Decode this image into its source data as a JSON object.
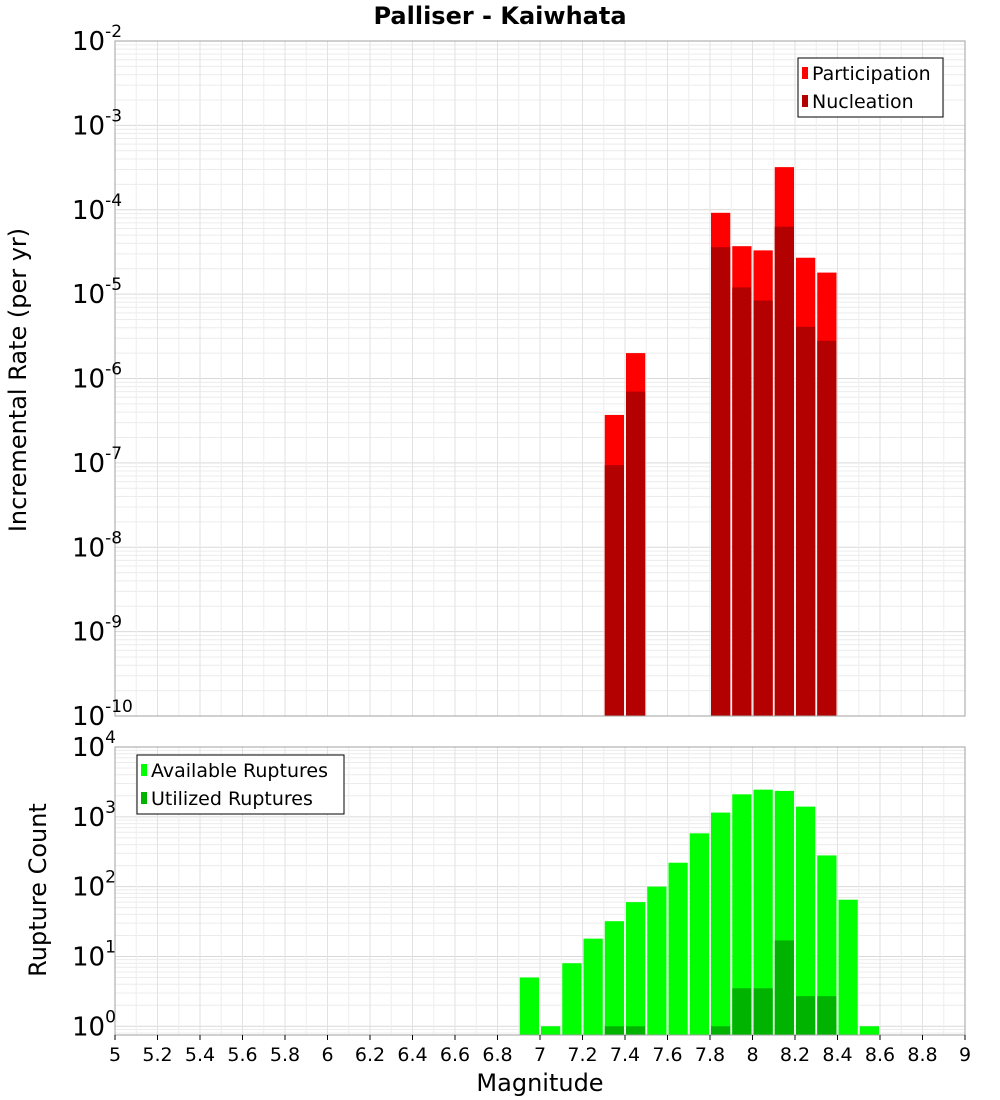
{
  "title": "Palliser - Kaiwhata",
  "chart_data": [
    {
      "type": "bar",
      "name": "top-panel",
      "title": "Palliser - Kaiwhata",
      "xlabel": "",
      "ylabel": "Incremental Rate (per yr)",
      "yscale": "log",
      "ylim": [
        1e-10,
        0.01
      ],
      "xlim": [
        5,
        9
      ],
      "bar_width": 0.1,
      "grid": true,
      "legend_position": "top-right",
      "y_ticks": [
        {
          "base": "10",
          "exp": "-10",
          "value": 1e-10
        },
        {
          "base": "10",
          "exp": "-9",
          "value": 1e-09
        },
        {
          "base": "10",
          "exp": "-8",
          "value": 1e-08
        },
        {
          "base": "10",
          "exp": "-7",
          "value": 1e-07
        },
        {
          "base": "10",
          "exp": "-6",
          "value": 1e-06
        },
        {
          "base": "10",
          "exp": "-5",
          "value": 1e-05
        },
        {
          "base": "10",
          "exp": "-4",
          "value": 0.0001
        },
        {
          "base": "10",
          "exp": "-3",
          "value": 0.001
        },
        {
          "base": "10",
          "exp": "-2",
          "value": 0.01
        }
      ],
      "series": [
        {
          "name": "Participation",
          "color": "#ff0000",
          "x": [
            7.35,
            7.45,
            7.85,
            7.95,
            8.05,
            8.15,
            8.25,
            8.35
          ],
          "values": [
            3.7e-07,
            2e-06,
            9.2e-05,
            3.7e-05,
            3.3e-05,
            0.00032,
            2.7e-05,
            1.8e-05
          ]
        },
        {
          "name": "Nucleation",
          "color": "#b30000",
          "x": [
            7.35,
            7.45,
            7.85,
            7.95,
            8.05,
            8.15,
            8.25,
            8.35
          ],
          "values": [
            9.4e-08,
            7e-07,
            3.6e-05,
            1.2e-05,
            8.4e-06,
            6.3e-05,
            4.1e-06,
            2.8e-06
          ]
        }
      ]
    },
    {
      "type": "bar",
      "name": "bottom-panel",
      "xlabel": "Magnitude",
      "ylabel": "Rupture Count",
      "yscale": "log",
      "ylim": [
        0.75,
        10000
      ],
      "xlim": [
        5,
        9
      ],
      "bar_width": 0.1,
      "grid": true,
      "legend_position": "top-left",
      "y_ticks": [
        {
          "base": "10",
          "exp": "0",
          "value": 1
        },
        {
          "base": "10",
          "exp": "1",
          "value": 10
        },
        {
          "base": "10",
          "exp": "2",
          "value": 100
        },
        {
          "base": "10",
          "exp": "3",
          "value": 1000
        },
        {
          "base": "10",
          "exp": "4",
          "value": 10000
        }
      ],
      "x_ticks": [
        "5",
        "5.2",
        "5.4",
        "5.6",
        "5.8",
        "6",
        "6.2",
        "6.4",
        "6.6",
        "6.8",
        "7",
        "7.2",
        "7.4",
        "7.6",
        "7.8",
        "8",
        "8.2",
        "8.4",
        "8.6",
        "8.8",
        "9"
      ],
      "series": [
        {
          "name": "Available Ruptures",
          "color": "#00ff00",
          "x": [
            6.95,
            7.05,
            7.15,
            7.25,
            7.35,
            7.45,
            7.55,
            7.65,
            7.75,
            7.85,
            7.95,
            8.05,
            8.15,
            8.25,
            8.35,
            8.45,
            8.55
          ],
          "values": [
            5,
            1,
            8,
            18,
            32,
            60,
            100,
            220,
            580,
            1150,
            2100,
            2450,
            2350,
            1400,
            280,
            65,
            1
          ]
        },
        {
          "name": "Utilized Ruptures",
          "color": "#00b300",
          "x": [
            7.35,
            7.45,
            7.85,
            7.95,
            8.05,
            8.15,
            8.25,
            8.35
          ],
          "values": [
            1,
            1,
            1,
            3.5,
            3.5,
            17,
            2.7,
            2.7
          ]
        }
      ]
    }
  ]
}
